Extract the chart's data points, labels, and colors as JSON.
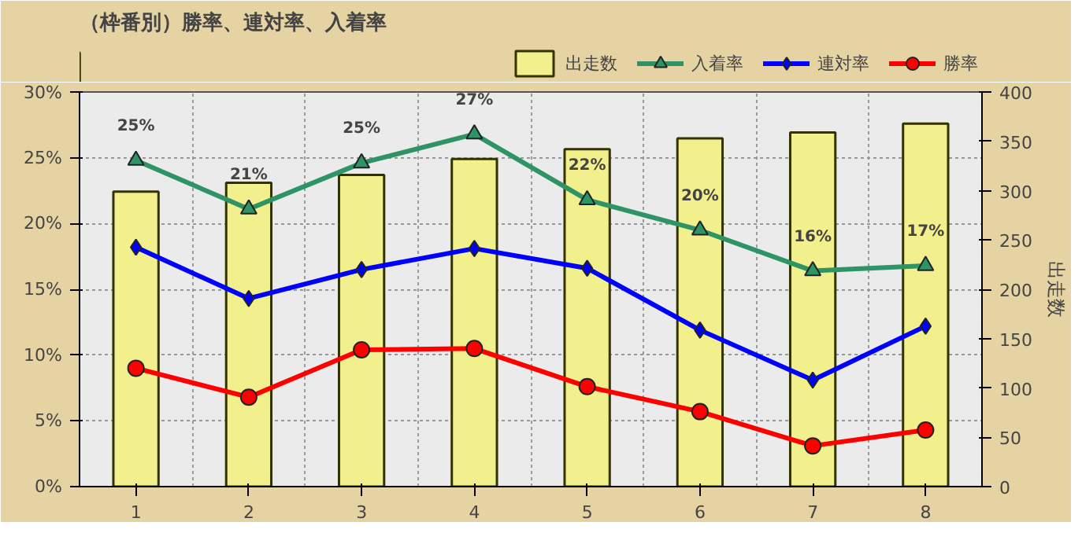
{
  "chart_data": {
    "type": "line",
    "title": "（枠番別）勝率、連対率、入着率",
    "categories": [
      "1",
      "2",
      "3",
      "4",
      "5",
      "6",
      "7",
      "8"
    ],
    "ylim": [
      0,
      30
    ],
    "yticks": [
      {
        "value": 0,
        "label": "0%"
      },
      {
        "value": 5,
        "label": "5%"
      },
      {
        "value": 10,
        "label": "10%"
      },
      {
        "value": 15,
        "label": "15%"
      },
      {
        "value": 20,
        "label": "20%"
      },
      {
        "value": 25,
        "label": "25%"
      },
      {
        "value": 30,
        "label": "30%"
      }
    ],
    "y2lim": [
      0,
      400
    ],
    "y2ticks": [
      0,
      50,
      100,
      150,
      200,
      250,
      300,
      350,
      400
    ],
    "y2label": "出走数",
    "grid": true,
    "legend": "top",
    "series": [
      {
        "name": "出走数",
        "type": "bar",
        "axis": "y2",
        "color": "#f2f08c",
        "values": [
          299,
          308,
          316,
          332,
          342,
          353,
          359,
          368
        ]
      },
      {
        "name": "入着率",
        "color": "#2e9466",
        "marker": "triangle",
        "values": [
          24.8,
          21.1,
          24.6,
          26.8,
          21.8,
          19.5,
          16.4,
          16.8
        ],
        "value_labels": [
          "25%",
          "21%",
          "25%",
          "27%",
          "22%",
          "20%",
          "16%",
          "17%"
        ]
      },
      {
        "name": "連対率",
        "color": "#0000ff",
        "marker": "diamond",
        "values": [
          18.2,
          14.3,
          16.5,
          18.1,
          16.6,
          11.9,
          8.1,
          12.2
        ]
      },
      {
        "name": "勝率",
        "color": "#ff0000",
        "marker": "circle",
        "values": [
          9.0,
          6.8,
          10.4,
          10.5,
          7.6,
          5.7,
          3.1,
          4.3
        ]
      }
    ]
  }
}
